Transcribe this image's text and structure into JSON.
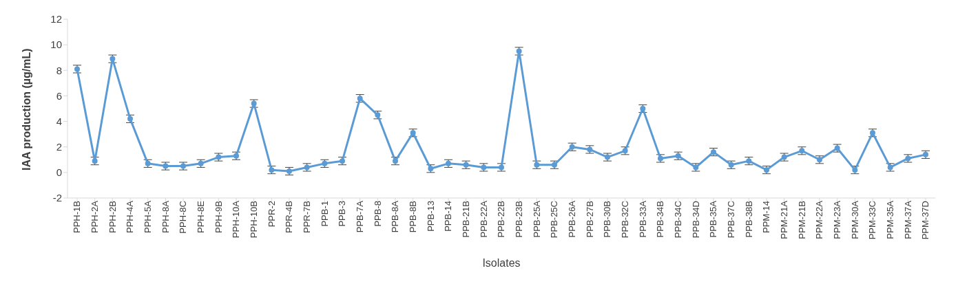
{
  "chart_data": {
    "type": "line",
    "xlabel": "Isolates",
    "ylabel": "IAA production (µg/mL)",
    "categories": [
      "PPH-1B",
      "PPH-2A",
      "PPH-2B",
      "PPH-4A",
      "PPH-5A",
      "PPH-8A",
      "PPH-8C",
      "PPH-8E",
      "PPH-9B",
      "PPH-10A",
      "PPH-10B",
      "PPR-2",
      "PPR-4B",
      "PPR-7B",
      "PPB-1",
      "PPB-3",
      "PPB-7A",
      "PPB-8",
      "PPB-8A",
      "PPB-8B",
      "PPB-13",
      "PPB-14",
      "PPB-21B",
      "PPB-22A",
      "PPB-22B",
      "PPB-23B",
      "PPB-25A",
      "PPB-25C",
      "PPB-26A",
      "PPB-27B",
      "PPB-30B",
      "PPB-32C",
      "PPB-33A",
      "PPB-34B",
      "PPB-34C",
      "PPB-34D",
      "PPB-35A",
      "PPB-37C",
      "PPB-38B",
      "PPM-14",
      "PPM-21A",
      "PPM-21B",
      "PPM-22A",
      "PPM-23A",
      "PPM-30A",
      "PPM-33C",
      "PPM-35A",
      "PPM-37A",
      "PPM-37D"
    ],
    "series": [
      {
        "color": "#5b9bd5",
        "values": [
          8.1,
          0.9,
          8.9,
          4.2,
          0.7,
          0.5,
          0.5,
          0.7,
          1.2,
          1.3,
          5.4,
          0.2,
          0.1,
          0.4,
          0.7,
          0.9,
          5.8,
          4.5,
          0.9,
          3.1,
          0.3,
          0.7,
          0.6,
          0.4,
          0.4,
          9.5,
          0.6,
          0.6,
          2.0,
          1.8,
          1.2,
          1.7,
          5.0,
          1.1,
          1.3,
          0.4,
          1.6,
          0.6,
          0.9,
          0.2,
          1.2,
          1.7,
          1.0,
          1.9,
          0.2,
          3.1,
          0.4,
          1.1,
          1.4
        ],
        "errors": [
          0.3,
          0.3,
          0.3,
          0.3,
          0.3,
          0.3,
          0.3,
          0.3,
          0.3,
          0.3,
          0.3,
          0.3,
          0.3,
          0.3,
          0.3,
          0.3,
          0.3,
          0.3,
          0.3,
          0.3,
          0.3,
          0.3,
          0.3,
          0.3,
          0.3,
          0.3,
          0.3,
          0.3,
          0.3,
          0.3,
          0.3,
          0.3,
          0.3,
          0.3,
          0.3,
          0.3,
          0.3,
          0.3,
          0.3,
          0.3,
          0.3,
          0.3,
          0.3,
          0.3,
          0.3,
          0.3,
          0.3,
          0.3,
          0.3
        ]
      }
    ],
    "ylim": [
      -2,
      12
    ],
    "yticks": [
      -2,
      0,
      2,
      4,
      6,
      8,
      10,
      12
    ],
    "legend": false,
    "marker": "circle",
    "line_style": "solid"
  }
}
